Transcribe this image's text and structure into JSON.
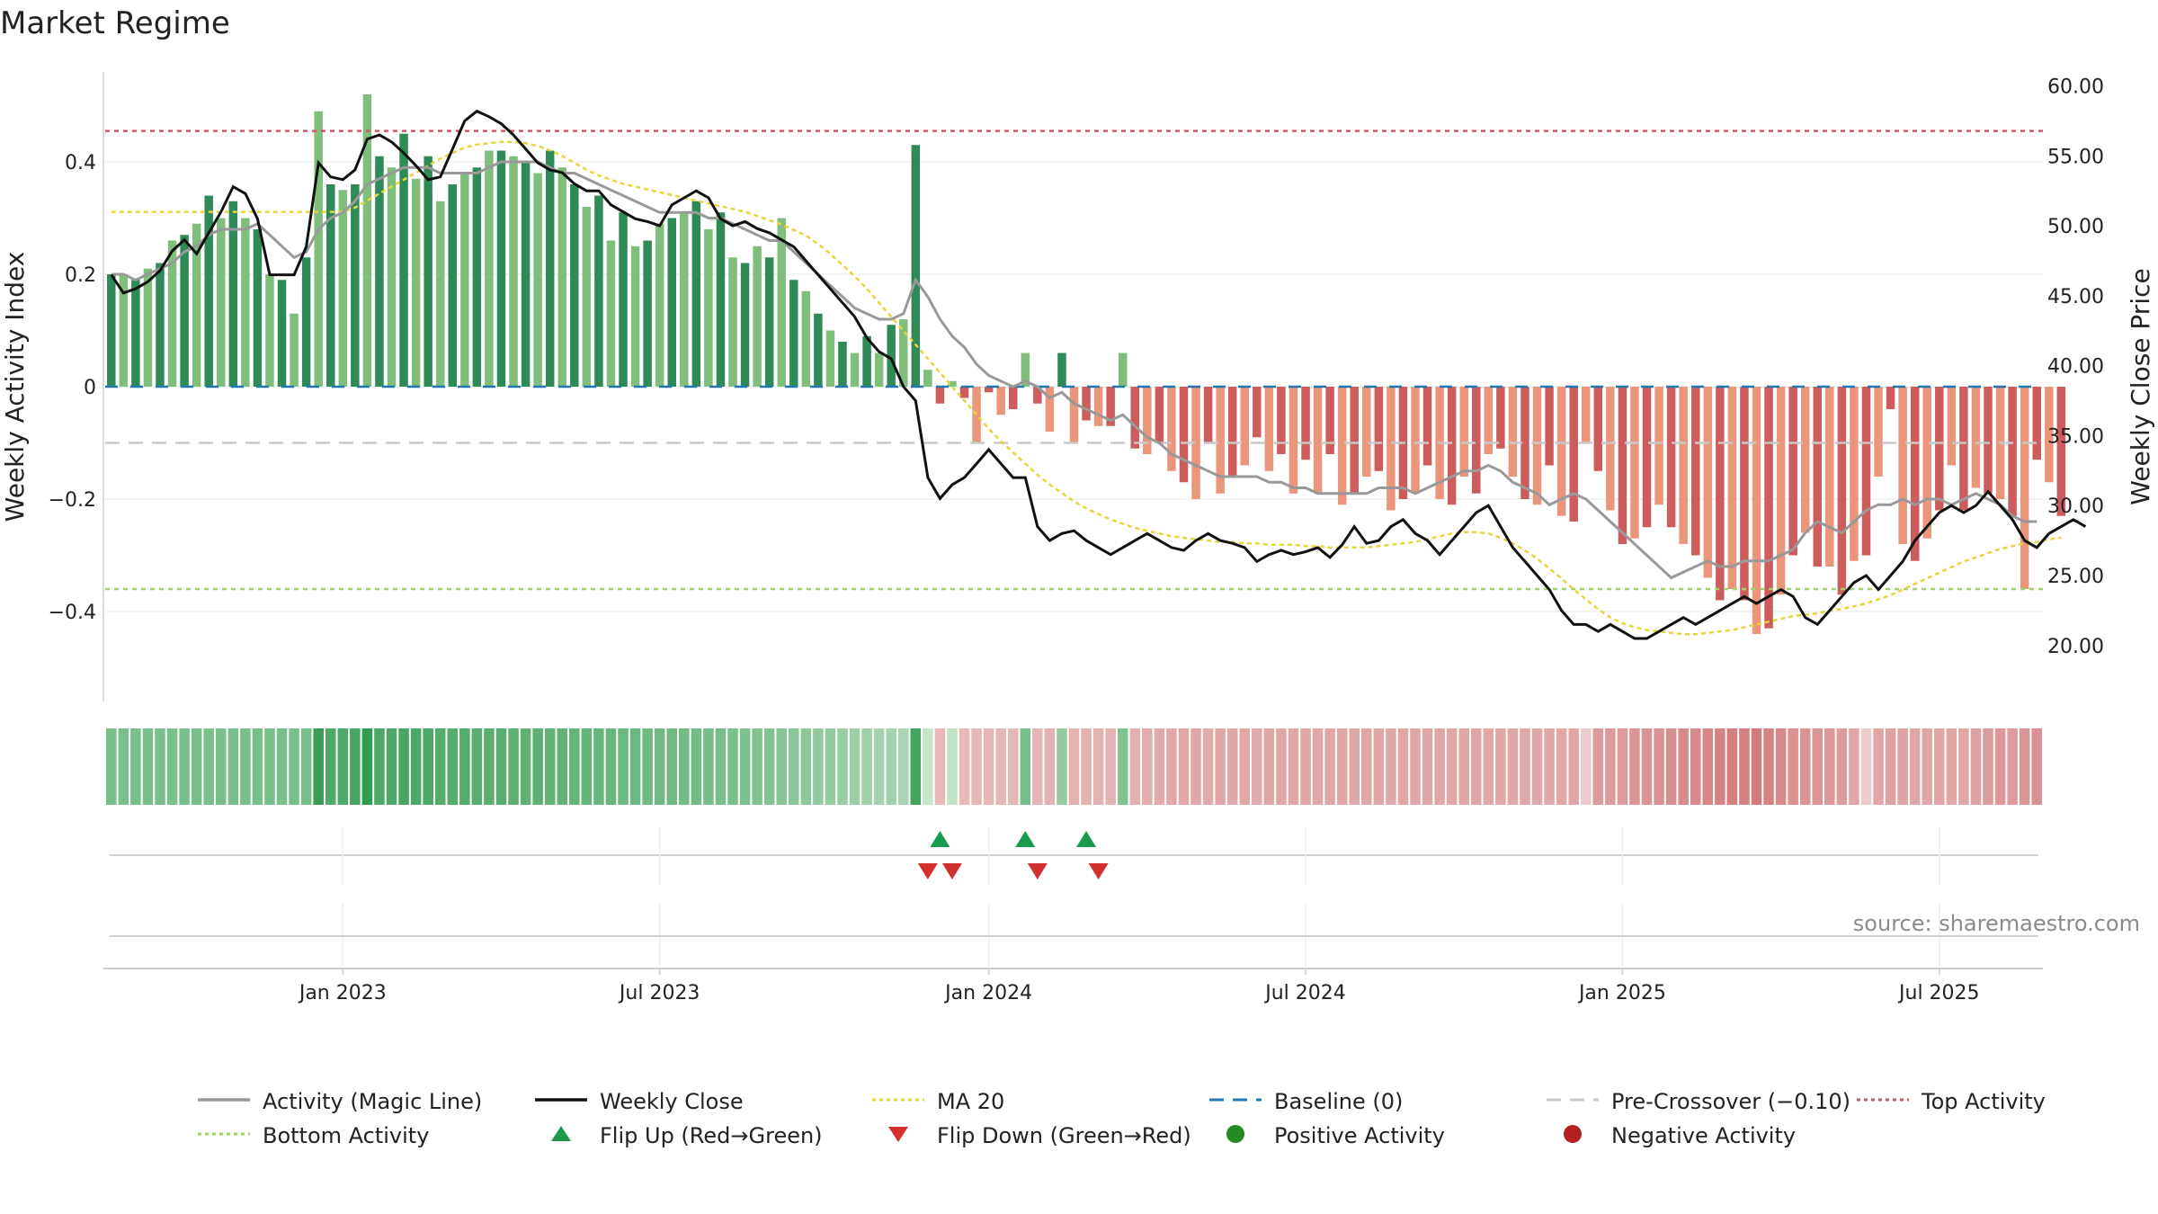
{
  "title": "Market Regime",
  "source": "source: sharemaestro.com",
  "colors": {
    "green_dark": "#2e8b57",
    "green_light": "#7fbf7b",
    "red_dark": "#cd5c5c",
    "red_light": "#e9967a",
    "magic_line": "#999999",
    "weekly_close": "#111111",
    "ma20": "#e8d53a",
    "baseline": "#1f77b4",
    "pre_crossover": "#c8c8c8",
    "top_activity": "#d9536a",
    "bottom_activity": "#9fd36b",
    "flip_up": "#1a9b4b",
    "flip_down": "#d32f2f",
    "positive_dot": "#228b22",
    "negative_dot": "#b22222"
  },
  "chart_data": {
    "type": "bar",
    "title": "Market Regime",
    "ylabel": "Weekly Activity Index",
    "y2label": "Weekly Close Price",
    "ylim": [
      -0.56,
      0.56
    ],
    "y2lim": [
      16.0,
      61.0
    ],
    "yticks": [
      {
        "label": "0.4",
        "value": 0.4
      },
      {
        "label": "0.2",
        "value": 0.2
      },
      {
        "label": "0",
        "value": 0
      },
      {
        "label": "−0.2",
        "value": -0.2
      },
      {
        "label": "−0.4",
        "value": -0.4
      }
    ],
    "y2ticks": [
      "60.00",
      "55.00",
      "50.00",
      "45.00",
      "40.00",
      "35.00",
      "30.00",
      "25.00",
      "20.00"
    ],
    "xticks": [
      {
        "label": "Jan 2023",
        "index": 19
      },
      {
        "label": "Jul 2023",
        "index": 45
      },
      {
        "label": "Jan 2024",
        "index": 72
      },
      {
        "label": "Jul 2024",
        "index": 98
      },
      {
        "label": "Jan 2025",
        "index": 124
      },
      {
        "label": "Jul 2025",
        "index": 150
      }
    ],
    "n_weeks": 159,
    "activity": [
      0.2,
      0.2,
      0.19,
      0.21,
      0.22,
      0.26,
      0.27,
      0.29,
      0.34,
      0.3,
      0.33,
      0.3,
      0.28,
      0.2,
      0.19,
      0.13,
      0.23,
      0.49,
      0.36,
      0.35,
      0.36,
      0.52,
      0.41,
      0.39,
      0.45,
      0.37,
      0.41,
      0.33,
      0.36,
      0.38,
      0.39,
      0.42,
      0.42,
      0.41,
      0.4,
      0.38,
      0.42,
      0.39,
      0.36,
      0.32,
      0.34,
      0.26,
      0.31,
      0.25,
      0.26,
      0.29,
      0.3,
      0.31,
      0.33,
      0.28,
      0.31,
      0.23,
      0.22,
      0.25,
      0.23,
      0.3,
      0.19,
      0.17,
      0.13,
      0.1,
      0.08,
      0.06,
      0.09,
      0.06,
      0.11,
      0.12,
      0.43,
      0.03,
      -0.03,
      0.01,
      -0.02,
      -0.1,
      -0.01,
      -0.05,
      -0.04,
      0.06,
      -0.03,
      -0.08,
      0.06,
      -0.1,
      -0.06,
      -0.07,
      -0.07,
      0.06,
      -0.11,
      -0.12,
      -0.1,
      -0.15,
      -0.17,
      -0.2,
      -0.1,
      -0.19,
      -0.16,
      -0.14,
      -0.09,
      -0.15,
      -0.12,
      -0.19,
      -0.13,
      -0.19,
      -0.12,
      -0.21,
      -0.19,
      -0.16,
      -0.15,
      -0.22,
      -0.2,
      -0.19,
      -0.14,
      -0.2,
      -0.21,
      -0.16,
      -0.19,
      -0.12,
      -0.11,
      -0.16,
      -0.2,
      -0.21,
      -0.14,
      -0.23,
      -0.24,
      -0.1,
      -0.15,
      -0.22,
      -0.28,
      -0.27,
      -0.25,
      -0.21,
      -0.25,
      -0.28,
      -0.3,
      -0.34,
      -0.38,
      -0.36,
      -0.38,
      -0.44,
      -0.43,
      -0.37,
      -0.3,
      -0.26,
      -0.32,
      -0.32,
      -0.37,
      -0.31,
      -0.3,
      -0.16,
      -0.04,
      -0.28,
      -0.31,
      -0.27,
      -0.22,
      -0.14,
      -0.22,
      -0.18,
      -0.19,
      -0.2,
      -0.23,
      -0.36,
      -0.13,
      -0.17,
      -0.23
    ],
    "magic_line": [
      0.2,
      0.2,
      0.19,
      0.2,
      0.21,
      0.22,
      0.24,
      0.25,
      0.27,
      0.28,
      0.28,
      0.28,
      0.29,
      0.27,
      0.25,
      0.23,
      0.24,
      0.28,
      0.3,
      0.31,
      0.33,
      0.36,
      0.37,
      0.38,
      0.39,
      0.39,
      0.39,
      0.38,
      0.38,
      0.38,
      0.38,
      0.39,
      0.4,
      0.4,
      0.4,
      0.4,
      0.39,
      0.38,
      0.38,
      0.37,
      0.36,
      0.35,
      0.34,
      0.33,
      0.32,
      0.31,
      0.31,
      0.31,
      0.31,
      0.3,
      0.3,
      0.29,
      0.28,
      0.27,
      0.26,
      0.26,
      0.24,
      0.22,
      0.2,
      0.18,
      0.16,
      0.14,
      0.13,
      0.12,
      0.12,
      0.13,
      0.19,
      0.16,
      0.12,
      0.09,
      0.07,
      0.04,
      0.02,
      0.01,
      0.0,
      0.01,
      -0.0,
      -0.02,
      -0.01,
      -0.03,
      -0.04,
      -0.05,
      -0.06,
      -0.05,
      -0.07,
      -0.09,
      -0.1,
      -0.12,
      -0.13,
      -0.14,
      -0.15,
      -0.16,
      -0.16,
      -0.16,
      -0.16,
      -0.17,
      -0.17,
      -0.18,
      -0.18,
      -0.19,
      -0.19,
      -0.19,
      -0.19,
      -0.19,
      -0.18,
      -0.18,
      -0.18,
      -0.19,
      -0.18,
      -0.17,
      -0.16,
      -0.15,
      -0.15,
      -0.14,
      -0.15,
      -0.17,
      -0.18,
      -0.19,
      -0.21,
      -0.2,
      -0.19,
      -0.2,
      -0.22,
      -0.24,
      -0.26,
      -0.28,
      -0.3,
      -0.32,
      -0.34,
      -0.33,
      -0.32,
      -0.31,
      -0.32,
      -0.32,
      -0.31,
      -0.31,
      -0.31,
      -0.3,
      -0.29,
      -0.26,
      -0.24,
      -0.25,
      -0.26,
      -0.24,
      -0.22,
      -0.21,
      -0.21,
      -0.2,
      -0.21,
      -0.2,
      -0.2,
      -0.21,
      -0.2,
      -0.19,
      -0.2,
      -0.21,
      -0.23,
      -0.24,
      -0.24
    ],
    "weekly_close": [
      46.5,
      45.2,
      45.5,
      46.0,
      46.8,
      48.2,
      49.0,
      48.0,
      49.5,
      51.0,
      52.8,
      52.3,
      50.5,
      46.5,
      46.5,
      46.5,
      48.5,
      54.5,
      53.5,
      53.3,
      54.0,
      56.2,
      56.5,
      56.0,
      55.2,
      54.3,
      53.3,
      53.5,
      55.5,
      57.5,
      58.2,
      57.8,
      57.3,
      56.5,
      55.5,
      54.5,
      54.0,
      53.8,
      53.0,
      52.5,
      52.5,
      51.5,
      51.0,
      50.5,
      50.3,
      50.0,
      51.5,
      52.0,
      52.5,
      52.0,
      50.5,
      50.0,
      50.3,
      49.8,
      49.5,
      49.0,
      48.5,
      47.5,
      46.5,
      45.5,
      44.5,
      43.5,
      42.0,
      41.0,
      40.5,
      38.5,
      37.5,
      32.0,
      30.5,
      31.5,
      32.0,
      33.0,
      34.0,
      33.0,
      32.0,
      32.0,
      28.5,
      27.5,
      28.0,
      28.2,
      27.5,
      27.0,
      26.5,
      27.0,
      27.5,
      28.0,
      27.5,
      27.0,
      26.8,
      27.5,
      28.0,
      27.5,
      27.3,
      27.0,
      26.0,
      26.5,
      26.8,
      26.5,
      26.7,
      27.0,
      26.3,
      27.2,
      28.5,
      27.3,
      27.5,
      28.5,
      29.0,
      28.0,
      27.5,
      26.5,
      27.5,
      28.5,
      29.5,
      30.0,
      28.5,
      27.0,
      26.0,
      25.0,
      24.0,
      22.5,
      21.5,
      21.5,
      21.0,
      21.5,
      21.0,
      20.5,
      20.5,
      21.0,
      21.5,
      22.0,
      21.5,
      22.0,
      22.5,
      23.0,
      23.5,
      23.0,
      23.5,
      24.0,
      23.5,
      22.0,
      21.5,
      22.5,
      23.5,
      24.5,
      25.0,
      24.0,
      25.0,
      26.0,
      27.5,
      28.5,
      29.5,
      30.0,
      29.5,
      30.0,
      31.0,
      30.0,
      29.0,
      27.5,
      27.0,
      28.0,
      28.5,
      29.0,
      28.5
    ],
    "ma20": [
      51.0,
      51.0,
      51.0,
      51.0,
      51.0,
      51.0,
      51.0,
      51.0,
      51.0,
      51.0,
      51.0,
      51.0,
      51.0,
      51.0,
      51.0,
      51.0,
      51.0,
      51.0,
      51.0,
      51.0,
      51.3,
      51.8,
      52.3,
      52.8,
      53.3,
      53.8,
      54.3,
      54.8,
      55.2,
      55.6,
      55.8,
      55.9,
      56.0,
      56.0,
      55.9,
      55.7,
      55.4,
      55.0,
      54.5,
      54.0,
      53.6,
      53.3,
      53.0,
      52.8,
      52.6,
      52.4,
      52.2,
      52.0,
      51.8,
      51.6,
      51.4,
      51.2,
      51.0,
      50.7,
      50.4,
      50.1,
      49.7,
      49.3,
      48.7,
      48.0,
      47.2,
      46.4,
      45.5,
      44.5,
      43.5,
      42.5,
      41.5,
      40.5,
      39.5,
      38.5,
      37.5,
      36.5,
      35.5,
      34.6,
      33.8,
      33.0,
      32.2,
      31.5,
      30.9,
      30.3,
      29.8,
      29.4,
      29.0,
      28.7,
      28.4,
      28.2,
      28.0,
      27.8,
      27.7,
      27.6,
      27.5,
      27.4,
      27.4,
      27.3,
      27.3,
      27.2,
      27.2,
      27.2,
      27.1,
      27.1,
      27.0,
      27.0,
      27.0,
      27.0,
      27.1,
      27.2,
      27.3,
      27.4,
      27.6,
      27.8,
      28.0,
      28.1,
      28.1,
      28.0,
      27.7,
      27.3,
      26.8,
      26.2,
      25.5,
      24.8,
      24.0,
      23.3,
      22.6,
      22.0,
      21.6,
      21.3,
      21.1,
      21.0,
      20.9,
      20.8,
      20.8,
      20.9,
      21.0,
      21.1,
      21.3,
      21.5,
      21.7,
      21.9,
      22.1,
      22.2,
      22.3,
      22.5,
      22.6,
      22.8,
      23.0,
      23.3,
      23.6,
      24.0,
      24.4,
      24.8,
      25.2,
      25.6,
      26.0,
      26.3,
      26.6,
      26.9,
      27.1,
      27.3,
      27.4,
      27.6,
      27.7
    ],
    "intensity_strip": [
      0.55,
      0.55,
      0.55,
      0.55,
      0.55,
      0.55,
      0.55,
      0.55,
      0.55,
      0.55,
      0.55,
      0.55,
      0.55,
      0.55,
      0.55,
      0.55,
      0.55,
      0.9,
      0.78,
      0.78,
      0.82,
      0.95,
      0.8,
      0.8,
      0.82,
      0.8,
      0.8,
      0.75,
      0.75,
      0.75,
      0.72,
      0.72,
      0.72,
      0.7,
      0.7,
      0.7,
      0.68,
      0.68,
      0.66,
      0.66,
      0.64,
      0.64,
      0.62,
      0.62,
      0.6,
      0.6,
      0.6,
      0.58,
      0.58,
      0.56,
      0.56,
      0.55,
      0.52,
      0.5,
      0.5,
      0.48,
      0.46,
      0.44,
      0.42,
      0.4,
      0.38,
      0.36,
      0.34,
      0.32,
      0.32,
      0.3,
      0.85,
      0.12,
      0.3,
      0.15,
      0.3,
      0.32,
      0.32,
      0.32,
      0.32,
      0.55,
      0.34,
      0.36,
      0.4,
      0.36,
      0.36,
      0.36,
      0.36,
      0.5,
      0.38,
      0.4,
      0.42,
      0.44,
      0.44,
      0.45,
      0.42,
      0.45,
      0.45,
      0.45,
      0.42,
      0.45,
      0.45,
      0.45,
      0.45,
      0.45,
      0.45,
      0.45,
      0.45,
      0.45,
      0.45,
      0.45,
      0.45,
      0.45,
      0.45,
      0.45,
      0.45,
      0.45,
      0.45,
      0.45,
      0.45,
      0.45,
      0.45,
      0.45,
      0.45,
      0.45,
      0.45,
      0.15,
      0.55,
      0.55,
      0.55,
      0.6,
      0.62,
      0.62,
      0.65,
      0.68,
      0.7,
      0.72,
      0.75,
      0.78,
      0.78,
      0.8,
      0.75,
      0.7,
      0.62,
      0.6,
      0.6,
      0.58,
      0.55,
      0.45,
      0.15,
      0.45,
      0.5,
      0.48,
      0.45,
      0.45,
      0.45,
      0.45,
      0.45,
      0.5,
      0.55,
      0.58,
      0.55,
      0.6,
      0.62
    ],
    "flip_up_weeks": [
      68,
      75,
      80
    ],
    "flip_down_weeks": [
      67,
      69,
      76,
      81
    ],
    "levels": {
      "top_activity": 0.455,
      "bottom_activity": -0.36,
      "pre_crossover": -0.1,
      "baseline": 0
    }
  },
  "legend": [
    {
      "label": "Activity (Magic Line)",
      "marker": "line-solid",
      "color": "#999999"
    },
    {
      "label": "Weekly Close",
      "marker": "line-solid",
      "color": "#111111"
    },
    {
      "label": "MA 20",
      "marker": "line-dotted",
      "color": "#e8d53a"
    },
    {
      "label": "Baseline (0)",
      "marker": "line-dashed",
      "color": "#1f77b4"
    },
    {
      "label": "Pre-Crossover (−0.10)",
      "marker": "line-dashed",
      "color": "#c8c8c8"
    },
    {
      "label": "Top Activity",
      "marker": "line-dotted",
      "color": "#d9536a"
    },
    {
      "label": "Bottom Activity",
      "marker": "line-dotted",
      "color": "#9fd36b"
    },
    {
      "label": "Flip Up (Red→Green)",
      "marker": "triangle-up",
      "color": "#1a9b4b"
    },
    {
      "label": "Flip Down (Green→Red)",
      "marker": "triangle-down",
      "color": "#d32f2f"
    },
    {
      "label": "Positive Activity",
      "marker": "dot",
      "color": "#228b22"
    },
    {
      "label": "Negative Activity",
      "marker": "dot",
      "color": "#b22222"
    }
  ]
}
